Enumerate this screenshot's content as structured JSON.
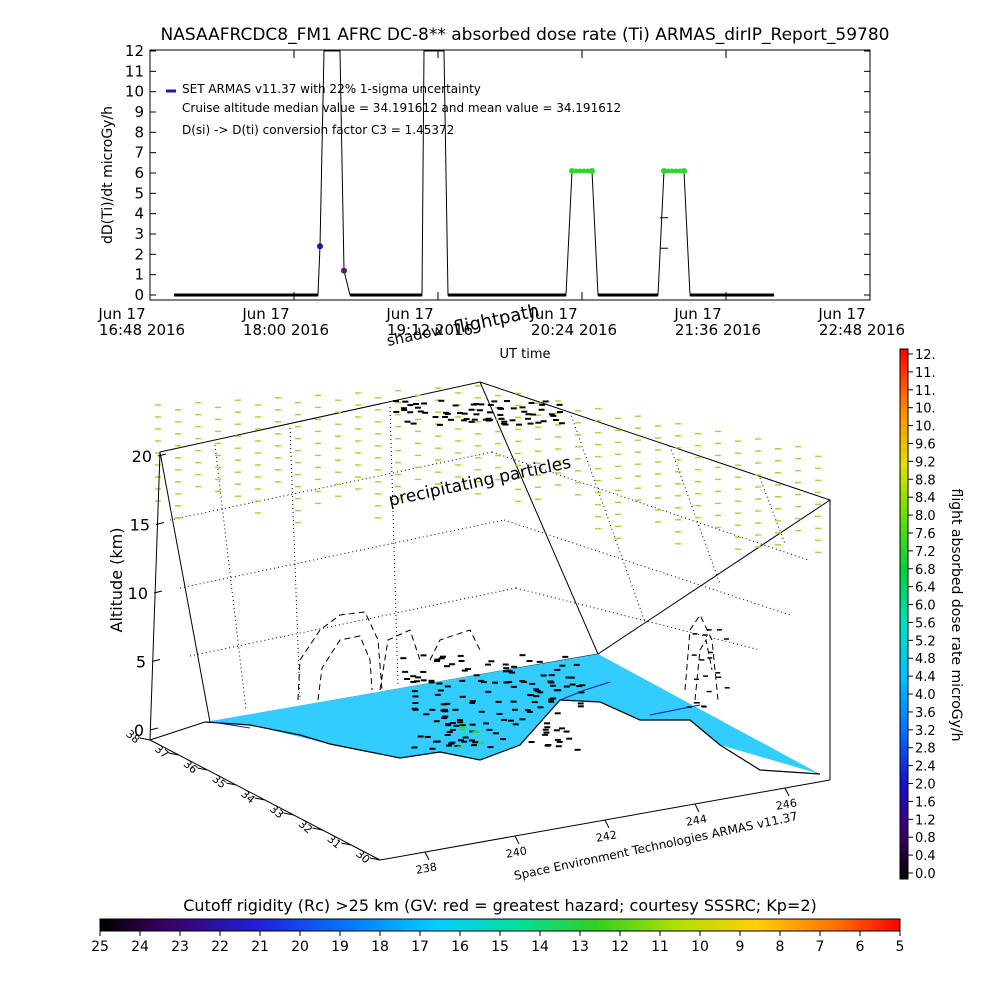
{
  "title": "NASAAFRCDC8_FM1 AFRC DC-8** absorbed dose rate (Ti) ARMAS_dirIP_Report_59780",
  "colors": {
    "ocean": "#33ccff",
    "green_point": "#2cd82c",
    "precip": "#99dd33",
    "marker_blue": "#1a1aa6",
    "marker_purple": "#5a1a6a"
  },
  "top_chart": {
    "ylabel": "dD(Ti)/dt microGy/h",
    "xlabel": "UT time",
    "yticks": [
      "0",
      "1",
      "2",
      "3",
      "4",
      "5",
      "6",
      "7",
      "8",
      "9",
      "10",
      "11",
      "12"
    ],
    "ylim": [
      0,
      12
    ],
    "xticks": [
      {
        "day": "Jun 17",
        "time": "16:48 2016"
      },
      {
        "day": "Jun 17",
        "time": "18:00 2016"
      },
      {
        "day": "Jun 17",
        "time": "19:12 2016"
      },
      {
        "day": "Jun 17",
        "time": "20:24 2016"
      },
      {
        "day": "Jun 17",
        "time": "21:36 2016"
      },
      {
        "day": "Jun 17",
        "time": "22:48 2016"
      }
    ],
    "legend": [
      "SET ARMAS v11.37 with 22% 1-sigma uncertainty",
      "Cruise altitude median value = 34.191612 and mean value = 34.191612",
      "D(si) -> D(ti) conversion factor C3 = 1.45372"
    ]
  },
  "chart_data": {
    "type": "line",
    "title": "NASAAFRCDC8_FM1 AFRC DC-8** absorbed dose rate (Ti) ARMAS_dirIP_Report_59780",
    "xlabel": "UT time",
    "ylabel": "dD(Ti)/dt microGy/h",
    "ylim": [
      0,
      12
    ],
    "xlim": [
      "16:48",
      "22:48"
    ],
    "series": [
      {
        "name": "SET ARMAS v11.37 with 22% 1-sigma uncertainty",
        "points": [
          [
            "17:00",
            0
          ],
          [
            "17:30",
            0
          ],
          [
            "17:50",
            0
          ],
          [
            "18:00",
            0
          ],
          [
            "18:12",
            0
          ],
          [
            "18:13",
            2.4
          ],
          [
            "18:15",
            12
          ],
          [
            "18:23",
            12
          ],
          [
            "18:25",
            1.2
          ],
          [
            "18:28",
            0
          ],
          [
            "18:50",
            0
          ],
          [
            "19:00",
            0
          ],
          [
            "19:04",
            0
          ],
          [
            "19:05",
            12
          ],
          [
            "19:15",
            12
          ],
          [
            "19:17",
            0
          ],
          [
            "19:40",
            0
          ],
          [
            "20:00",
            0
          ],
          [
            "20:16",
            0
          ],
          [
            "20:19",
            6.1
          ],
          [
            "20:29",
            6.1
          ],
          [
            "20:32",
            0
          ],
          [
            "20:50",
            0
          ],
          [
            "21:02",
            0
          ],
          [
            "21:05",
            6.1
          ],
          [
            "21:15",
            6.1
          ],
          [
            "21:18",
            0
          ],
          [
            "21:40",
            0
          ],
          [
            "22:00",
            0
          ]
        ]
      }
    ]
  },
  "plot3d": {
    "zlabel": "Altitude (km)",
    "zticks": [
      "0",
      "5",
      "10",
      "15",
      "20"
    ],
    "lat_ticks": [
      "30",
      "31",
      "32",
      "33",
      "34",
      "35",
      "36",
      "37",
      "38"
    ],
    "lon_ticks": [
      "238",
      "240",
      "242",
      "244",
      "246"
    ],
    "annotations": {
      "shadow": "shadow",
      "flightpath": "flightpath",
      "ut_time": "UT time",
      "precip": "precipitating particles",
      "credit": "Space Environment Technologies ARMAS v11.37"
    }
  },
  "colorbar_right": {
    "label": "flight absorbed dose rate microGy/h",
    "ticks": [
      "12.",
      "11.",
      "11.",
      "10.",
      "10.",
      "9.6",
      "9.2",
      "8.8",
      "8.4",
      "8.0",
      "7.6",
      "7.2",
      "6.8",
      "6.4",
      "6.0",
      "5.6",
      "5.2",
      "4.8",
      "4.4",
      "4.0",
      "3.6",
      "3.2",
      "2.8",
      "2.4",
      "2.0",
      "1.6",
      "1.2",
      "0.8",
      "0.4",
      "0.0"
    ]
  },
  "colorbar_bottom": {
    "title": "Cutoff rigidity (Rc) >25 km (GV: red = greatest hazard; courtesy SSSRC; Kp=2)",
    "ticks": [
      "25",
      "24",
      "23",
      "22",
      "21",
      "20",
      "19",
      "18",
      "17",
      "16",
      "15",
      "14",
      "13",
      "12",
      "11",
      "10",
      "9",
      "8",
      "7",
      "6",
      "5"
    ]
  }
}
